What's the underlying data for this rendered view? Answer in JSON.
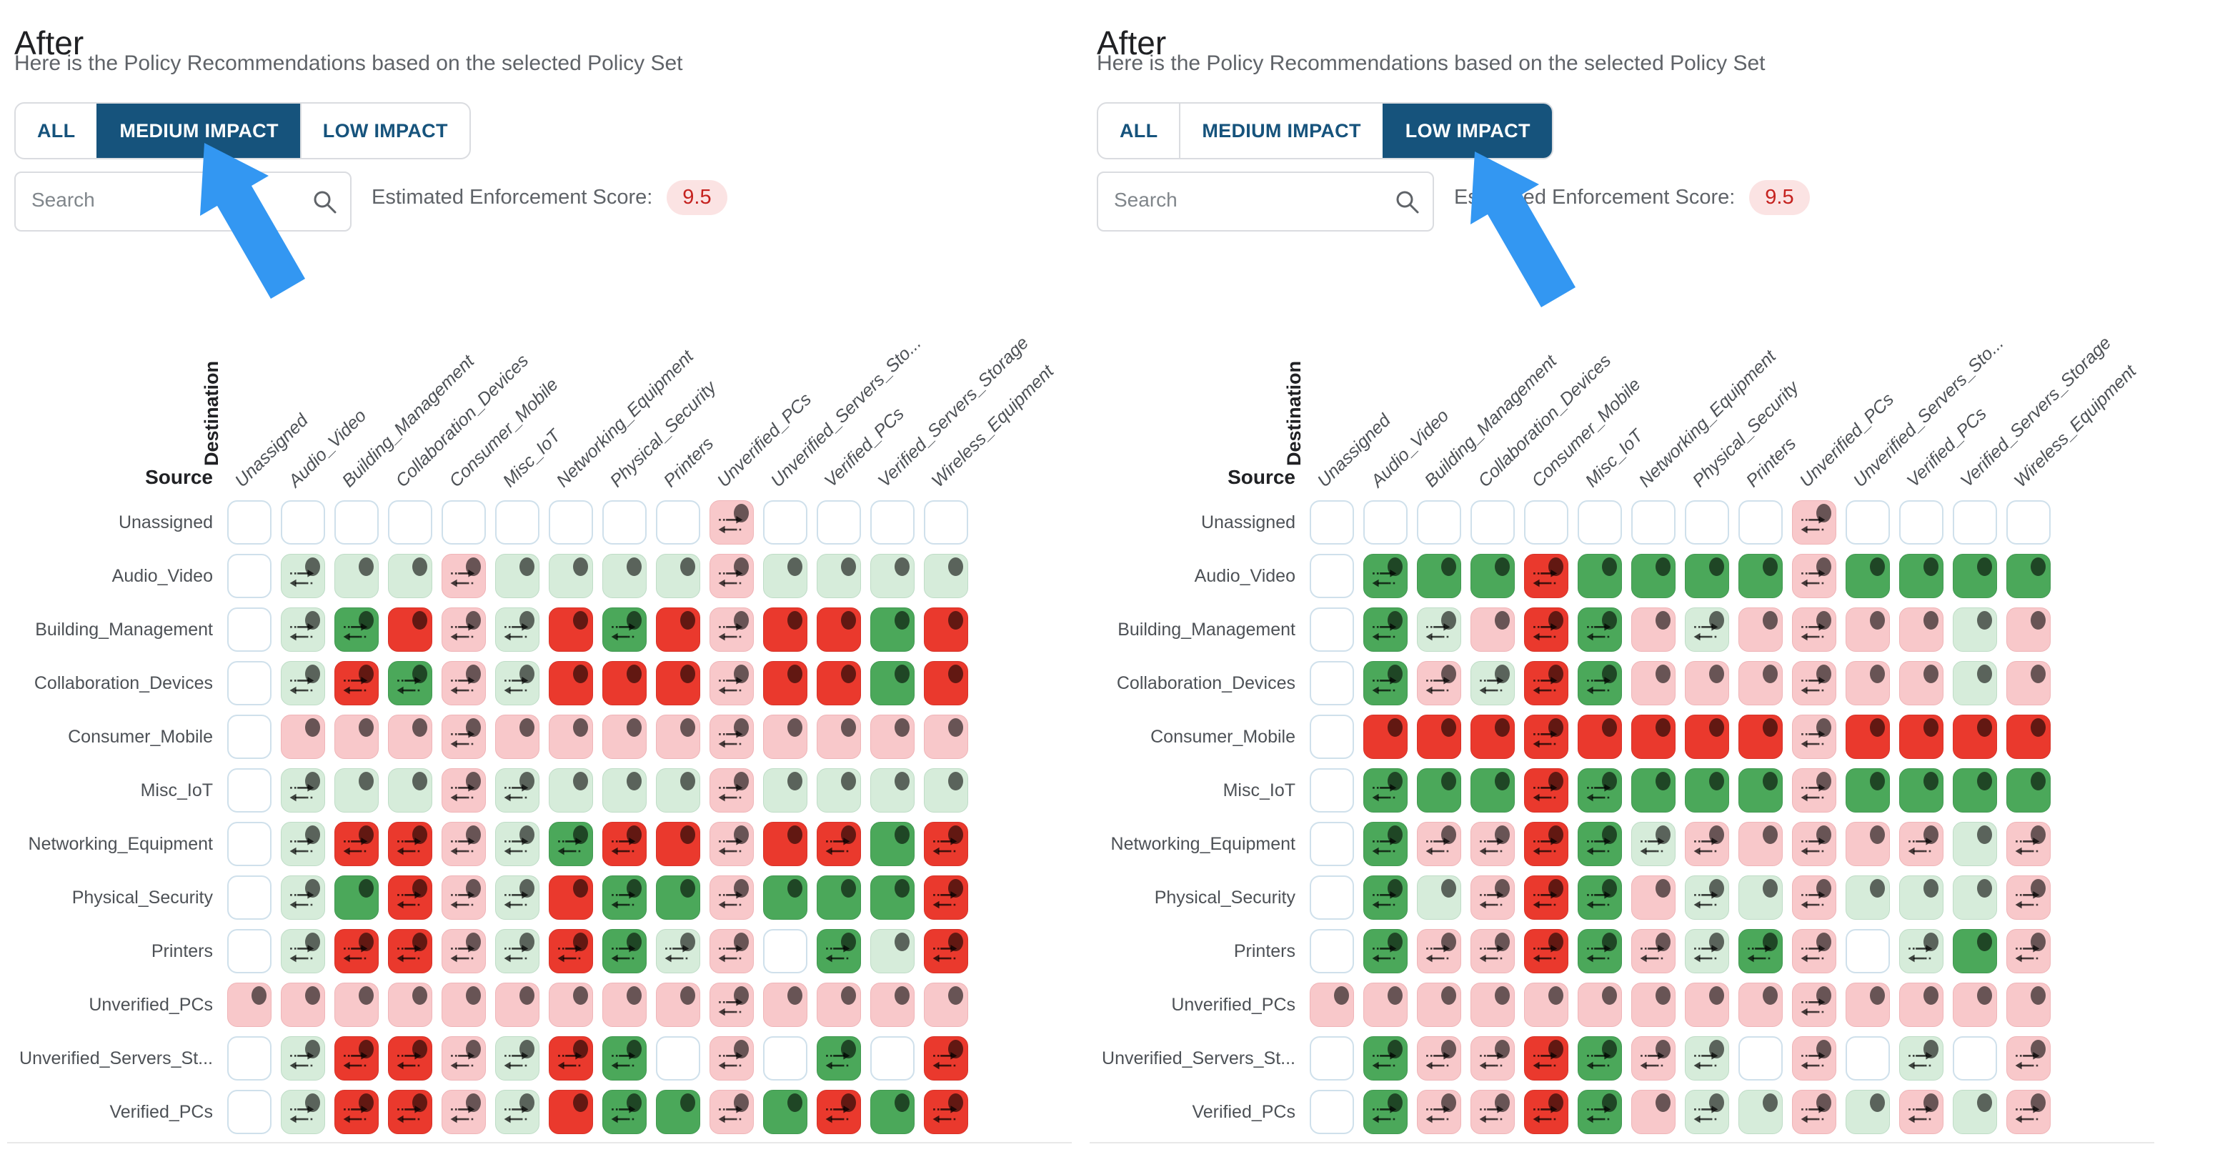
{
  "colors": {
    "tab_blue": "#16537c",
    "cursor_arrow_blue": "#3397f2",
    "score_badge_bg": "#fbe3e3",
    "score_badge_text": "#c5221f",
    "cell_green": "#4ba85a",
    "cell_green_light": "#d6ecda",
    "cell_red": "#ea392d",
    "cell_pink": "#f8c8ca",
    "cell_empty_border": "#cfe0eb"
  },
  "cell_code_legend": {
    "w": "empty white cell",
    "gd": "light-green cell with dot",
    "ga": "light-green cell with bidirectional arrows and dot",
    "Gd": "green cell with dot",
    "Ga": "green cell with bidirectional arrows and dot",
    "pd": "pink cell with dot",
    "pa": "pink cell with bidirectional arrows and dot",
    "Rd": "red cell with dot",
    "Ra": "red cell with bidirectional arrows and dot"
  },
  "panels": [
    {
      "title": "After",
      "subtitle": "Here is the Policy Recommendations based on the selected Policy Set",
      "tabs": [
        {
          "label": "ALL",
          "selected": false
        },
        {
          "label": "MEDIUM IMPACT",
          "selected": true
        },
        {
          "label": "LOW IMPACT",
          "selected": false
        }
      ],
      "search": {
        "placeholder": "Search"
      },
      "score": {
        "label": "Estimated Enforcement Score:",
        "value": "9.5"
      },
      "matrix": {
        "destination_label": "Destination",
        "source_label": "Source",
        "columns": [
          "Unassigned",
          "Audio_Video",
          "Building_Management",
          "Collaboration_Devices",
          "Consumer_Mobile",
          "Misc_IoT",
          "Networking_Equipment",
          "Physical_Security",
          "Printers",
          "Unverified_PCs",
          "Unverified_Servers_Sto...",
          "Verified_PCs",
          "Verified_Servers_Storage",
          "Wireless_Equipment"
        ],
        "rows": [
          {
            "label": "Unassigned",
            "cells": [
              "w",
              "w",
              "w",
              "w",
              "w",
              "w",
              "w",
              "w",
              "w",
              "pa",
              "w",
              "w",
              "w",
              "w"
            ]
          },
          {
            "label": "Audio_Video",
            "cells": [
              "w",
              "ga",
              "gd",
              "gd",
              "pa",
              "gd",
              "gd",
              "gd",
              "gd",
              "pa",
              "gd",
              "gd",
              "gd",
              "gd"
            ]
          },
          {
            "label": "Building_Management",
            "cells": [
              "w",
              "ga",
              "Ga",
              "Rd",
              "pa",
              "ga",
              "Rd",
              "Ga",
              "Rd",
              "pa",
              "Rd",
              "Rd",
              "Gd",
              "Rd"
            ]
          },
          {
            "label": "Collaboration_Devices",
            "cells": [
              "w",
              "ga",
              "Ra",
              "Ga",
              "pa",
              "ga",
              "Rd",
              "Rd",
              "Rd",
              "pa",
              "Rd",
              "Rd",
              "Gd",
              "Rd"
            ]
          },
          {
            "label": "Consumer_Mobile",
            "cells": [
              "w",
              "pd",
              "pd",
              "pd",
              "pa",
              "pd",
              "pd",
              "pd",
              "pd",
              "pa",
              "pd",
              "pd",
              "pd",
              "pd"
            ]
          },
          {
            "label": "Misc_IoT",
            "cells": [
              "w",
              "ga",
              "gd",
              "gd",
              "pa",
              "ga",
              "gd",
              "gd",
              "gd",
              "pa",
              "gd",
              "gd",
              "gd",
              "gd"
            ]
          },
          {
            "label": "Networking_Equipment",
            "cells": [
              "w",
              "ga",
              "Ra",
              "Ra",
              "pa",
              "ga",
              "Ga",
              "Ra",
              "Rd",
              "pa",
              "Rd",
              "Ra",
              "Gd",
              "Ra"
            ]
          },
          {
            "label": "Physical_Security",
            "cells": [
              "w",
              "ga",
              "Gd",
              "Ra",
              "pa",
              "ga",
              "Rd",
              "Ga",
              "Gd",
              "pa",
              "Gd",
              "Gd",
              "Gd",
              "Ra"
            ]
          },
          {
            "label": "Printers",
            "cells": [
              "w",
              "ga",
              "Ra",
              "Ra",
              "pa",
              "ga",
              "Ra",
              "Ga",
              "ga",
              "pa",
              "w",
              "Ga",
              "gd",
              "Ra"
            ]
          },
          {
            "label": "Unverified_PCs",
            "cells": [
              "pd",
              "pd",
              "pd",
              "pd",
              "pd",
              "pd",
              "pd",
              "pd",
              "pd",
              "pa",
              "pd",
              "pd",
              "pd",
              "pd"
            ]
          },
          {
            "label": "Unverified_Servers_St...",
            "cells": [
              "w",
              "ga",
              "Ra",
              "Ra",
              "pa",
              "ga",
              "Ra",
              "Ga",
              "w",
              "pa",
              "w",
              "Ga",
              "w",
              "Ra"
            ]
          },
          {
            "label": "Verified_PCs",
            "cells": [
              "w",
              "ga",
              "Ra",
              "Ra",
              "pa",
              "ga",
              "Rd",
              "Ga",
              "Gd",
              "pa",
              "Gd",
              "Ra",
              "Gd",
              "Ra"
            ]
          }
        ]
      }
    },
    {
      "title": "After",
      "subtitle": "Here is the Policy Recommendations based on the selected Policy Set",
      "tabs": [
        {
          "label": "ALL",
          "selected": false
        },
        {
          "label": "MEDIUM IMPACT",
          "selected": false
        },
        {
          "label": "LOW IMPACT",
          "selected": true
        }
      ],
      "search": {
        "placeholder": "Search"
      },
      "score": {
        "label": "Estimated Enforcement Score:",
        "value": "9.5"
      },
      "matrix": {
        "destination_label": "Destination",
        "source_label": "Source",
        "columns": [
          "Unassigned",
          "Audio_Video",
          "Building_Management",
          "Collaboration_Devices",
          "Consumer_Mobile",
          "Misc_IoT",
          "Networking_Equipment",
          "Physical_Security",
          "Printers",
          "Unverified_PCs",
          "Unverified_Servers_Sto...",
          "Verified_PCs",
          "Verified_Servers_Storage",
          "Wireless_Equipment"
        ],
        "rows": [
          {
            "label": "Unassigned",
            "cells": [
              "w",
              "w",
              "w",
              "w",
              "w",
              "w",
              "w",
              "w",
              "w",
              "pa",
              "w",
              "w",
              "w",
              "w"
            ]
          },
          {
            "label": "Audio_Video",
            "cells": [
              "w",
              "Ga",
              "Gd",
              "Gd",
              "Ra",
              "Gd",
              "Gd",
              "Gd",
              "Gd",
              "pa",
              "Gd",
              "Gd",
              "Gd",
              "Gd"
            ]
          },
          {
            "label": "Building_Management",
            "cells": [
              "w",
              "Ga",
              "ga",
              "pd",
              "Ra",
              "Ga",
              "pd",
              "ga",
              "pd",
              "pa",
              "pd",
              "pd",
              "gd",
              "pd"
            ]
          },
          {
            "label": "Collaboration_Devices",
            "cells": [
              "w",
              "Ga",
              "pa",
              "ga",
              "Ra",
              "Ga",
              "pd",
              "pd",
              "pd",
              "pa",
              "pd",
              "pd",
              "gd",
              "pd"
            ]
          },
          {
            "label": "Consumer_Mobile",
            "cells": [
              "w",
              "Rd",
              "Rd",
              "Rd",
              "Ra",
              "Rd",
              "Rd",
              "Rd",
              "Rd",
              "pa",
              "Rd",
              "Rd",
              "Rd",
              "Rd"
            ]
          },
          {
            "label": "Misc_IoT",
            "cells": [
              "w",
              "Ga",
              "Gd",
              "Gd",
              "Ra",
              "Ga",
              "Gd",
              "Gd",
              "Gd",
              "pa",
              "Gd",
              "Gd",
              "Gd",
              "Gd"
            ]
          },
          {
            "label": "Networking_Equipment",
            "cells": [
              "w",
              "Ga",
              "pa",
              "pa",
              "Ra",
              "Ga",
              "ga",
              "pa",
              "pd",
              "pa",
              "pd",
              "pa",
              "gd",
              "pa"
            ]
          },
          {
            "label": "Physical_Security",
            "cells": [
              "w",
              "Ga",
              "gd",
              "pa",
              "Ra",
              "Ga",
              "pd",
              "ga",
              "gd",
              "pa",
              "gd",
              "gd",
              "gd",
              "pa"
            ]
          },
          {
            "label": "Printers",
            "cells": [
              "w",
              "Ga",
              "pa",
              "pa",
              "Ra",
              "Ga",
              "pa",
              "ga",
              "Ga",
              "pa",
              "w",
              "ga",
              "Gd",
              "pa"
            ]
          },
          {
            "label": "Unverified_PCs",
            "cells": [
              "pd",
              "pd",
              "pd",
              "pd",
              "pd",
              "pd",
              "pd",
              "pd",
              "pd",
              "pa",
              "pd",
              "pd",
              "pd",
              "pd"
            ]
          },
          {
            "label": "Unverified_Servers_St...",
            "cells": [
              "w",
              "Ga",
              "pa",
              "pa",
              "Ra",
              "Ga",
              "pa",
              "ga",
              "w",
              "pa",
              "w",
              "ga",
              "w",
              "pa"
            ]
          },
          {
            "label": "Verified_PCs",
            "cells": [
              "w",
              "Ga",
              "pa",
              "pa",
              "Ra",
              "Ga",
              "pd",
              "ga",
              "gd",
              "pa",
              "gd",
              "pa",
              "gd",
              "pa"
            ]
          }
        ]
      }
    }
  ]
}
